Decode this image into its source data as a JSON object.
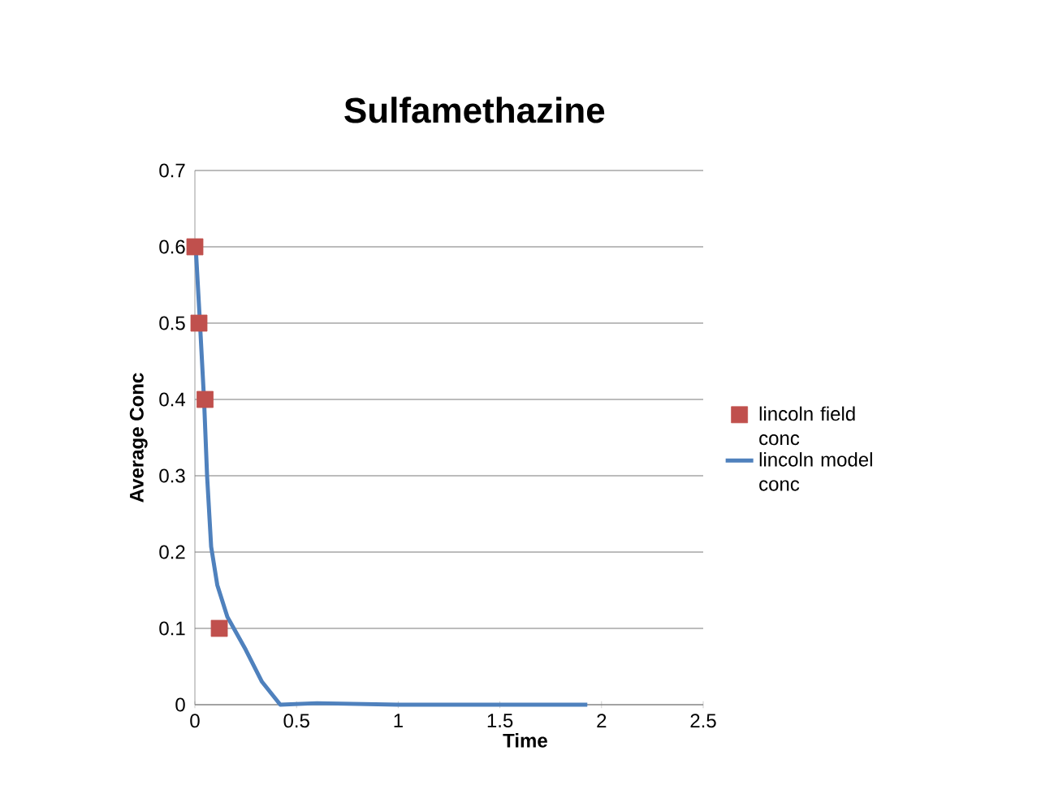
{
  "chart_data": {
    "type": "scatter",
    "title": "Sulfamethazine",
    "xlabel": "Time",
    "ylabel": "Average Conc",
    "xlim": [
      0,
      2.5
    ],
    "ylim": [
      0,
      0.7
    ],
    "xticks": [
      0,
      0.5,
      1,
      1.5,
      2,
      2.5
    ],
    "yticks": [
      0,
      0.1,
      0.2,
      0.3,
      0.4,
      0.5,
      0.6,
      0.7
    ],
    "grid": "y",
    "legend": "right",
    "series": [
      {
        "name": "lincoln field conc",
        "marker": "square",
        "color": "#c0504d",
        "x": [
          0,
          0.02,
          0.05,
          0.12
        ],
        "values": [
          0.6,
          0.5,
          0.4,
          0.1
        ]
      },
      {
        "name": "lincoln model conc",
        "type": "line",
        "marker": "none",
        "color": "#4f81bd",
        "x": [
          0.004,
          0.025,
          0.045,
          0.06,
          0.08,
          0.11,
          0.16,
          0.25,
          0.33,
          0.42,
          0.6,
          1.0,
          1.5,
          1.93
        ],
        "values": [
          0.6,
          0.5,
          0.4,
          0.3,
          0.207,
          0.157,
          0.115,
          0.072,
          0.03,
          0,
          0.002,
          0,
          0,
          0
        ]
      }
    ]
  }
}
